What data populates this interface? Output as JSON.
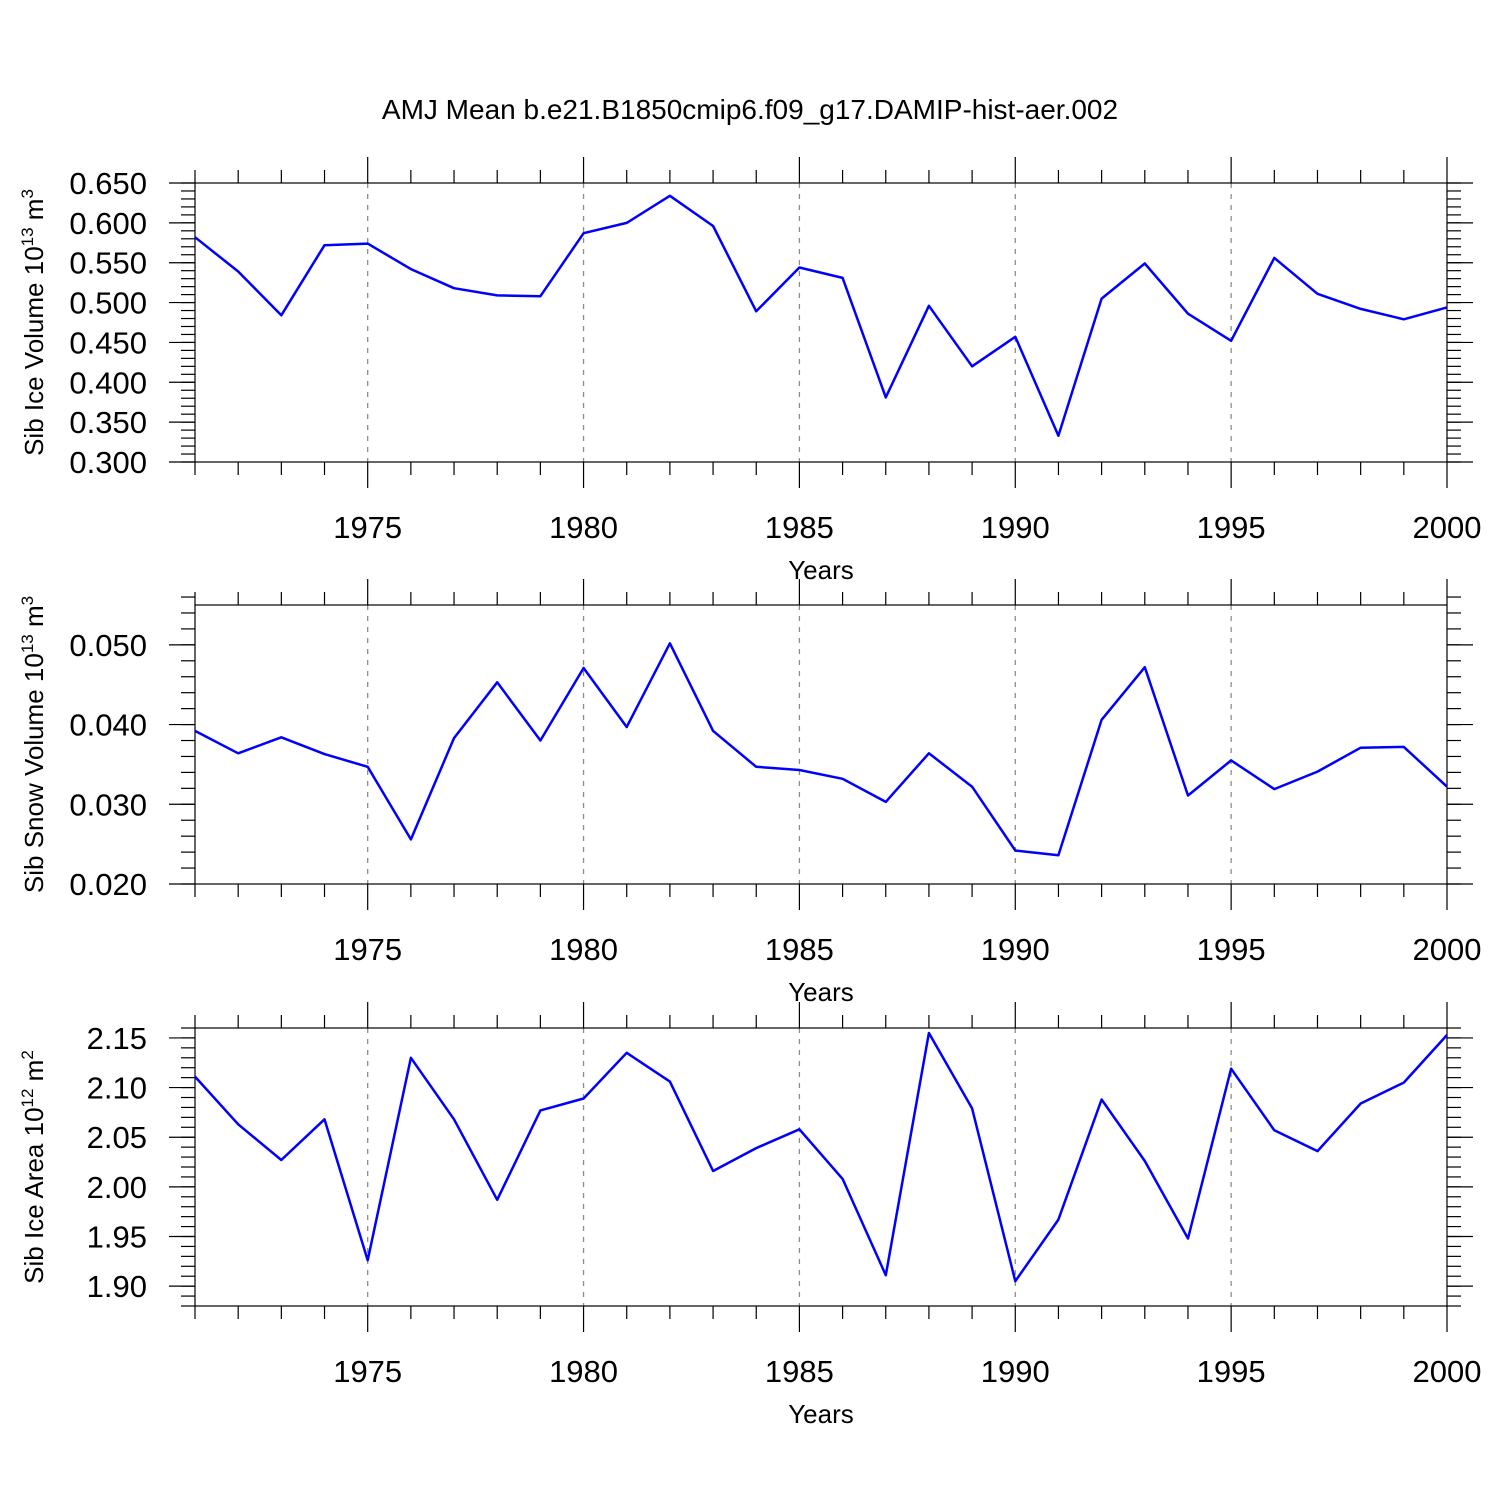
{
  "title": "AMJ Mean b.e21.B1850cmip6.f09_g17.DAMIP-hist-aer.002",
  "colors": {
    "series": "#0000ff",
    "axes": "#000000",
    "grid": "#8c8c8c"
  },
  "chart_data": [
    {
      "type": "line",
      "xlabel": "Years",
      "ylabel": {
        "text": "Sib Ice Volume 10",
        "sup1": "13",
        "mid": " m",
        "sup2": "3"
      },
      "xlim": [
        1971,
        2000
      ],
      "ylim": [
        0.3,
        0.65
      ],
      "yticks": [
        0.3,
        0.35,
        0.4,
        0.45,
        0.5,
        0.55,
        0.6,
        0.65
      ],
      "ytick_labels": [
        "0.300",
        "0.350",
        "0.400",
        "0.450",
        "0.500",
        "0.550",
        "0.600",
        "0.650"
      ],
      "xticks": [
        1975,
        1980,
        1985,
        1990,
        1995,
        2000
      ],
      "xtick_labels": [
        "1975",
        "1980",
        "1985",
        "1990",
        "1995",
        "2000"
      ],
      "grid": "vertical dashed at major x ticks",
      "x": [
        1971,
        1972,
        1973,
        1974,
        1975,
        1976,
        1977,
        1978,
        1979,
        1980,
        1981,
        1982,
        1983,
        1984,
        1985,
        1986,
        1987,
        1988,
        1989,
        1990,
        1991,
        1992,
        1993,
        1994,
        1995,
        1996,
        1997,
        1998,
        1999,
        2000
      ],
      "series": [
        {
          "values": [
            0.582,
            0.539,
            0.484,
            0.572,
            0.574,
            0.542,
            0.518,
            0.509,
            0.508,
            0.587,
            0.6,
            0.634,
            0.596,
            0.489,
            0.544,
            0.531,
            0.381,
            0.496,
            0.42,
            0.457,
            0.333,
            0.505,
            0.549,
            0.486,
            0.452,
            0.556,
            0.511,
            0.492,
            0.479,
            0.494
          ]
        }
      ]
    },
    {
      "type": "line",
      "xlabel": "Years",
      "ylabel": {
        "text": "Sib Snow Volume 10",
        "sup1": "13",
        "mid": " m",
        "sup2": "3"
      },
      "xlim": [
        1971,
        2000
      ],
      "ylim": [
        0.02,
        0.055
      ],
      "yticks": [
        0.02,
        0.03,
        0.04,
        0.05
      ],
      "ytick_labels": [
        "0.020",
        "0.030",
        "0.040",
        "0.050"
      ],
      "xticks": [
        1975,
        1980,
        1985,
        1990,
        1995,
        2000
      ],
      "xtick_labels": [
        "1975",
        "1980",
        "1985",
        "1990",
        "1995",
        "2000"
      ],
      "grid": "vertical dashed at major x ticks",
      "x": [
        1971,
        1972,
        1973,
        1974,
        1975,
        1976,
        1977,
        1978,
        1979,
        1980,
        1981,
        1982,
        1983,
        1984,
        1985,
        1986,
        1987,
        1988,
        1989,
        1990,
        1991,
        1992,
        1993,
        1994,
        1995,
        1996,
        1997,
        1998,
        1999,
        2000
      ],
      "series": [
        {
          "values": [
            0.0392,
            0.0364,
            0.0384,
            0.0363,
            0.0347,
            0.0256,
            0.0383,
            0.0453,
            0.038,
            0.0471,
            0.0397,
            0.0502,
            0.0392,
            0.0347,
            0.0343,
            0.0332,
            0.0303,
            0.0364,
            0.0322,
            0.0242,
            0.0236,
            0.0406,
            0.0472,
            0.0311,
            0.0355,
            0.0319,
            0.0341,
            0.0371,
            0.0372,
            0.0322
          ]
        }
      ]
    },
    {
      "type": "line",
      "xlabel": "Years",
      "ylabel": {
        "text": "Sib Ice Area 10",
        "sup1": "12",
        "mid": " m",
        "sup2": "2"
      },
      "xlim": [
        1971,
        2000
      ],
      "ylim": [
        1.88,
        2.16
      ],
      "yticks": [
        1.9,
        1.95,
        2.0,
        2.05,
        2.1,
        2.15
      ],
      "ytick_labels": [
        "1.90",
        "1.95",
        "2.00",
        "2.05",
        "2.10",
        "2.15"
      ],
      "xticks": [
        1975,
        1980,
        1985,
        1990,
        1995,
        2000
      ],
      "xtick_labels": [
        "1975",
        "1980",
        "1985",
        "1990",
        "1995",
        "2000"
      ],
      "grid": "vertical dashed at major x ticks",
      "x": [
        1971,
        1972,
        1973,
        1974,
        1975,
        1976,
        1977,
        1978,
        1979,
        1980,
        1981,
        1982,
        1983,
        1984,
        1985,
        1986,
        1987,
        1988,
        1989,
        1990,
        1991,
        1992,
        1993,
        1994,
        1995,
        1996,
        1997,
        1998,
        1999,
        2000
      ],
      "series": [
        {
          "values": [
            2.111,
            2.063,
            2.027,
            2.068,
            1.926,
            2.13,
            2.068,
            1.987,
            2.077,
            2.089,
            2.135,
            2.106,
            2.016,
            2.039,
            2.058,
            2.008,
            1.911,
            2.155,
            2.079,
            1.905,
            1.967,
            2.088,
            2.026,
            1.948,
            2.119,
            2.057,
            2.036,
            2.084,
            2.105,
            2.153
          ]
        }
      ]
    }
  ]
}
